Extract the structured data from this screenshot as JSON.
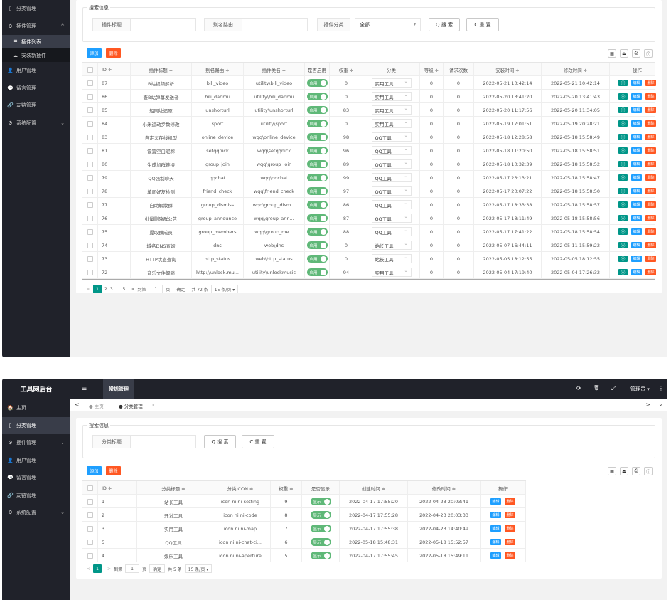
{
  "sidebar1": {
    "items": [
      {
        "icon": "▯",
        "label": "分类管理"
      },
      {
        "icon": "⚙",
        "label": "插件管理",
        "arrow": "^"
      },
      {
        "icon": "☰",
        "label": "插件列表"
      },
      {
        "icon": "☁",
        "label": "安装新插件"
      },
      {
        "icon": "👤",
        "label": "用户管理"
      },
      {
        "icon": "💬",
        "label": "留言管理"
      },
      {
        "icon": "🔗",
        "label": "友链管理"
      },
      {
        "icon": "⚙",
        "label": "系统配置",
        "arrow": "⌄"
      }
    ]
  },
  "plugins": {
    "search_title": "搜索信息",
    "label_title": "插件标题",
    "label_route": "别名路由",
    "label_category": "插件分类",
    "category_value": "全部",
    "search_btn": "Q 搜 索",
    "reset_btn": "C 重 置",
    "add_btn": "添加",
    "delete_btn": "删除",
    "tools": [
      "▦",
      "⏏",
      "⎙",
      "ⓘ"
    ],
    "headers": [
      "ID ≑",
      "插件标题 ≑",
      "别名路由 ≑",
      "插件类名 ≑",
      "是否启用",
      "权重 ≑",
      "分类",
      "等级 ≑",
      "请求次数",
      "安装时间 ≑",
      "修改时间 ≑",
      "操作"
    ],
    "enabled_label": "启用",
    "edit_label": "编辑",
    "del_label": "删除",
    "rows": [
      {
        "id": "87",
        "title": "B站视频解析",
        "route": "bili_video",
        "cls": "utility\\bili_video",
        "weight": "0",
        "cat": "实用工具",
        "level": "0",
        "req": "0",
        "install": "2022-05-21 10:42:14",
        "modify": "2022-05-21 10:42:14"
      },
      {
        "id": "86",
        "title": "查B站弹幕发送者",
        "route": "bili_danmu",
        "cls": "utility\\bili_danmu",
        "weight": "0",
        "cat": "实用工具",
        "level": "0",
        "req": "0",
        "install": "2022-05-20 13:41:20",
        "modify": "2022-05-20 13:41:43"
      },
      {
        "id": "85",
        "title": "短网址还原",
        "route": "unshorturl",
        "cls": "utility\\unshorturl",
        "weight": "83",
        "cat": "实用工具",
        "level": "0",
        "req": "0",
        "install": "2022-05-20 11:17:56",
        "modify": "2022-05-20 11:34:05"
      },
      {
        "id": "84",
        "title": "小米运动步数修改",
        "route": "sport",
        "cls": "utility\\sport",
        "weight": "0",
        "cat": "实用工具",
        "level": "0",
        "req": "0",
        "install": "2022-05-19 17:01:51",
        "modify": "2022-05-19 20:28:21"
      },
      {
        "id": "83",
        "title": "自定义在线机型",
        "route": "online_device",
        "cls": "wqq\\online_device",
        "weight": "98",
        "cat": "QQ工具",
        "level": "0",
        "req": "0",
        "install": "2022-05-18 12:28:58",
        "modify": "2022-05-18 15:58:49"
      },
      {
        "id": "81",
        "title": "设置空白昵称",
        "route": "setqqnick",
        "cls": "wqq\\setqqnick",
        "weight": "96",
        "cat": "QQ工具",
        "level": "0",
        "req": "0",
        "install": "2022-05-18 11:20:50",
        "modify": "2022-05-18 15:58:51"
      },
      {
        "id": "80",
        "title": "生成加群链接",
        "route": "group_join",
        "cls": "wqq\\group_join",
        "weight": "89",
        "cat": "QQ工具",
        "level": "0",
        "req": "0",
        "install": "2022-05-18 10:32:39",
        "modify": "2022-05-18 15:58:52"
      },
      {
        "id": "79",
        "title": "QQ强制聊天",
        "route": "qqchat",
        "cls": "wqq\\qqchat",
        "weight": "99",
        "cat": "QQ工具",
        "level": "0",
        "req": "0",
        "install": "2022-05-17 23:13:21",
        "modify": "2022-05-18 15:58:47"
      },
      {
        "id": "78",
        "title": "单向好友检测",
        "route": "friend_check",
        "cls": "wqq\\friend_check",
        "weight": "97",
        "cat": "QQ工具",
        "level": "0",
        "req": "0",
        "install": "2022-05-17 20:07:22",
        "modify": "2022-05-18 15:58:50"
      },
      {
        "id": "77",
        "title": "自助解散群",
        "route": "group_dismiss",
        "cls": "wqq\\group_dism...",
        "weight": "86",
        "cat": "QQ工具",
        "level": "0",
        "req": "0",
        "install": "2022-05-17 18:33:38",
        "modify": "2022-05-18 15:58:57"
      },
      {
        "id": "76",
        "title": "批量删除群公告",
        "route": "group_announce",
        "cls": "wqq\\group_ann...",
        "weight": "87",
        "cat": "QQ工具",
        "level": "0",
        "req": "0",
        "install": "2022-05-17 18:11:49",
        "modify": "2022-05-18 15:58:56"
      },
      {
        "id": "75",
        "title": "提取群成员",
        "route": "group_members",
        "cls": "wqq\\group_me...",
        "weight": "88",
        "cat": "QQ工具",
        "level": "0",
        "req": "0",
        "install": "2022-05-17 17:41:22",
        "modify": "2022-05-18 15:58:54"
      },
      {
        "id": "74",
        "title": "域名DNS查询",
        "route": "dns",
        "cls": "web\\dns",
        "weight": "0",
        "cat": "站长工具",
        "level": "0",
        "req": "0",
        "install": "2022-05-07 16:44:11",
        "modify": "2022-05-11 15:59:22"
      },
      {
        "id": "73",
        "title": "HTTP状态查询",
        "route": "http_status",
        "cls": "web\\http_status",
        "weight": "0",
        "cat": "站长工具",
        "level": "0",
        "req": "0",
        "install": "2022-05-05 18:12:55",
        "modify": "2022-05-05 18:12:55"
      },
      {
        "id": "72",
        "title": "音乐文件解锁",
        "route": "http://unlock.mu...",
        "cls": "utility\\unlockmusic",
        "weight": "94",
        "cat": "实用工具",
        "level": "0",
        "req": "0",
        "install": "2022-05-04 17:19:40",
        "modify": "2022-05-04 17:26:32"
      }
    ],
    "pager": {
      "prev": "<",
      "pages": [
        "1",
        "2",
        "3",
        "...",
        "5"
      ],
      "next": ">",
      "goto": "到第",
      "page_input": "1",
      "page_unit": "页",
      "confirm": "确定",
      "total": "共 72 条",
      "per_page": "15 条/页 ▾"
    }
  },
  "admin": {
    "logo": "工具网后台",
    "menu_icon": "☰",
    "top_tab": "常规管理",
    "icons": [
      "⟳",
      "🗑",
      "⤢"
    ],
    "user": "管理员 ▾",
    "more": "⋮",
    "tab_prev": "<",
    "tab_home": "● 主页",
    "tab_active": "● 分类管理",
    "tab_close": "×",
    "tab_next": ">",
    "tab_down": "⌄",
    "sidebar": [
      {
        "icon": "🏠",
        "label": "主页"
      },
      {
        "icon": "▯",
        "label": "分类管理"
      },
      {
        "icon": "⚙",
        "label": "插件管理",
        "arrow": "⌄"
      },
      {
        "icon": "👤",
        "label": "用户管理"
      },
      {
        "icon": "💬",
        "label": "留言管理"
      },
      {
        "icon": "🔗",
        "label": "友链管理"
      },
      {
        "icon": "⚙",
        "label": "系统配置",
        "arrow": "⌄"
      }
    ],
    "search_title": "搜索信息",
    "label_title": "分类标题",
    "search_btn": "Q 搜 索",
    "reset_btn": "C 重 置",
    "add_btn": "添加",
    "delete_btn": "删除",
    "headers": [
      "ID ≑",
      "分类标题 ≑",
      "分类ICON ≑",
      "权重 ≑",
      "是否显示",
      "创建时间 ≑",
      "修改时间 ≑",
      "操作"
    ],
    "show_label": "显示",
    "edit_label": "编辑",
    "del_label": "删除",
    "rows": [
      {
        "id": "1",
        "title": "站长工具",
        "icon": "icon ni ni-setting",
        "weight": "9",
        "create": "2022-04-17 17:55:20",
        "modify": "2022-04-23 20:03:41"
      },
      {
        "id": "2",
        "title": "开发工具",
        "icon": "icon ni ni-code",
        "weight": "8",
        "create": "2022-04-17 17:55:28",
        "modify": "2022-04-23 20:03:33"
      },
      {
        "id": "3",
        "title": "实用工具",
        "icon": "icon ni ni-map",
        "weight": "7",
        "create": "2022-04-17 17:55:38",
        "modify": "2022-04-23 14:40:49"
      },
      {
        "id": "5",
        "title": "QQ工具",
        "icon": "icon ni ni-chat-ci...",
        "weight": "6",
        "create": "2022-05-18 15:48:31",
        "modify": "2022-05-18 15:52:57"
      },
      {
        "id": "4",
        "title": "娱乐工具",
        "icon": "icon ni ni-aperture",
        "weight": "5",
        "create": "2022-04-17 17:55:45",
        "modify": "2022-05-18 15:49:11"
      }
    ],
    "pager": {
      "prev": "<",
      "cur": "1",
      "next": ">",
      "goto": "到第",
      "page_input": "1",
      "page_unit": "页",
      "confirm": "确定",
      "total": "共 5 条",
      "per_page": "15 条/页 ▾"
    }
  }
}
